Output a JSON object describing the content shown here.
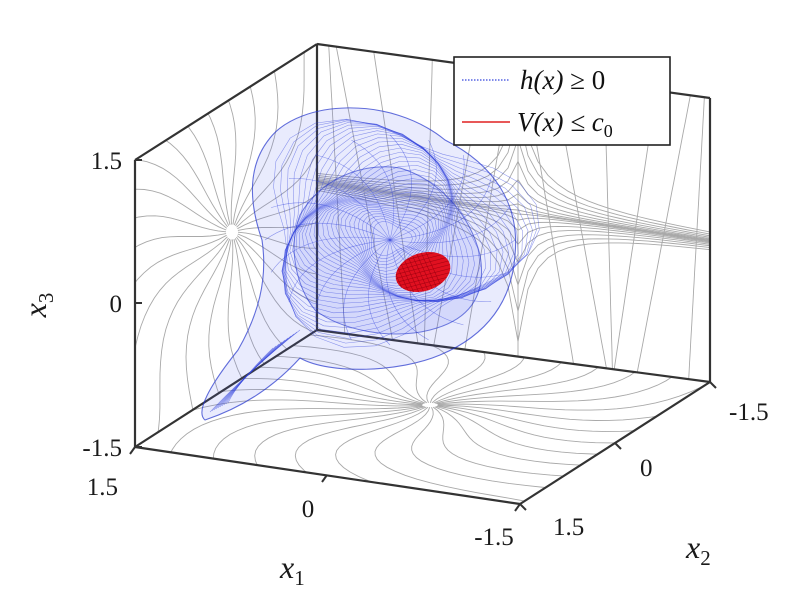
{
  "chart_data": {
    "type": "3d-region-plot",
    "axes": {
      "x1": {
        "label": "x",
        "sub": "1",
        "ticks": [
          "1.5",
          "0",
          "-1.5"
        ],
        "range": [
          -1.5,
          1.5
        ]
      },
      "x2": {
        "label": "x",
        "sub": "2",
        "ticks": [
          "-1.5",
          "0",
          "1.5"
        ],
        "range": [
          -1.5,
          1.5
        ]
      },
      "x3": {
        "label": "x",
        "sub": "3",
        "ticks": [
          "-1.5",
          "0",
          "1.5"
        ],
        "range": [
          -1.5,
          1.5
        ]
      }
    },
    "legend": {
      "placement": "top-right",
      "entries": [
        {
          "pre": "h(x)",
          "rel": " ≥ 0",
          "subscript": "",
          "color": "#3344dd",
          "style": "dotted"
        },
        {
          "pre": "V(x)",
          "rel": " ≤ c",
          "subscript": "0",
          "color": "#e02020",
          "style": "solid"
        }
      ]
    },
    "series": [
      {
        "name": "h(x) ≥ 0",
        "kind": "mesh-surface",
        "color": "#3344dd"
      },
      {
        "name": "V(x) ≤ c0",
        "kind": "ellipsoid",
        "color": "#e01020"
      }
    ],
    "background": "vector-field streamlines on the three back planes",
    "streamline_color": "#a9a9a9",
    "grid": false
  }
}
